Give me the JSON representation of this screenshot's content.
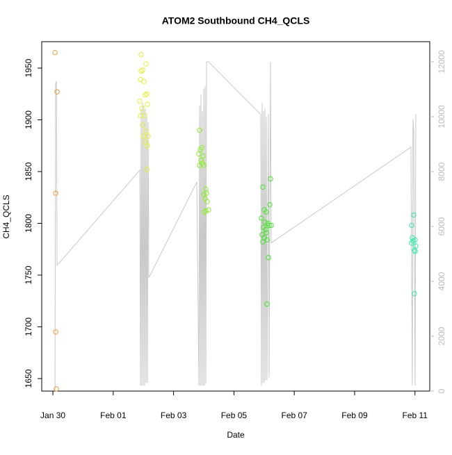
{
  "chart_data": {
    "type": "scatter",
    "title": "ATOM2 Southbound CH4_QCLS",
    "xlabel": "Date",
    "ylabel": "CH4_QCLS",
    "xlim": [
      -0.37,
      12.49
    ],
    "ylim": [
      1637.9,
      1975.5
    ],
    "y2lim": [
      0,
      12734
    ],
    "xticks": [
      {
        "value": 0,
        "label": "Jan 30"
      },
      {
        "value": 2,
        "label": "Feb 01"
      },
      {
        "value": 4,
        "label": "Feb 03"
      },
      {
        "value": 6,
        "label": "Feb 05"
      },
      {
        "value": 8,
        "label": "Feb 07"
      },
      {
        "value": 10,
        "label": "Feb 09"
      },
      {
        "value": 12,
        "label": "Feb 11"
      }
    ],
    "yticks": [
      1650,
      1700,
      1750,
      1800,
      1850,
      1900,
      1950
    ],
    "y2ticks": [
      0,
      2000,
      4000,
      6000,
      8000,
      10000,
      12000
    ],
    "series": [
      {
        "color": "#f39c3d",
        "x": [
          0.069,
          0.138,
          0.092,
          0.092,
          0.115
        ],
        "values": [
          1965,
          1927,
          1829,
          1695,
          1640
        ]
      },
      {
        "color": "#e6f02c",
        "x": [
          2.926,
          2.972,
          2.926,
          2.903,
          3.018,
          3.088,
          3.065,
          3.111,
          3.134,
          2.88,
          2.949,
          2.903,
          3.041,
          3.088,
          3.157,
          3.065,
          3.134,
          2.995,
          3.111,
          2.972
        ],
        "values": [
          1963,
          1948,
          1947,
          1939,
          1937,
          1954,
          1924,
          1925,
          1915,
          1918,
          1911,
          1904,
          1904,
          1889,
          1884,
          1878,
          1875,
          1884,
          1852,
          1895
        ]
      },
      {
        "color": "#88f020",
        "x": [
          4.862,
          4.885,
          4.931,
          4.839,
          4.977,
          4.908,
          4.862,
          5.0,
          4.954,
          5.069,
          5.092,
          5.046,
          5.115,
          5.069,
          5.161,
          5.023,
          5.0
        ],
        "values": [
          1890,
          1871,
          1873,
          1867,
          1865,
          1861,
          1856,
          1856,
          1858,
          1833,
          1829,
          1824,
          1821,
          1812,
          1813,
          1811,
          1828
        ]
      },
      {
        "color": "#44e628",
        "x": [
          6.959,
          7.212,
          7.189,
          7.005,
          7.074,
          6.912,
          7.028,
          7.12,
          6.982,
          7.166,
          7.051,
          7.235,
          6.935,
          7.005,
          7.097,
          6.959,
          7.143,
          7.097,
          7.074
        ],
        "values": [
          1835,
          1843,
          1818,
          1813,
          1811,
          1805,
          1801,
          1800,
          1796,
          1798,
          1794,
          1798,
          1789,
          1786,
          1784,
          1782,
          1767,
          1722,
          1791
        ]
      },
      {
        "color": "#28f0a8",
        "x": [
          11.889,
          11.959,
          11.912,
          11.935,
          12.005,
          11.889,
          12.028,
          11.982,
          12.005,
          11.982
        ],
        "values": [
          1798,
          1808,
          1786,
          1783,
          1784,
          1781,
          1778,
          1774,
          1773,
          1732
        ]
      },
      {
        "type": "line",
        "axis": "y2",
        "color": "#c8c8c8",
        "x": [
          0.069,
          0.092,
          0.115,
          0.138,
          2.88,
          2.903,
          2.926,
          2.949,
          2.972,
          2.995,
          3.018,
          3.041,
          3.065,
          3.088,
          3.111,
          3.134,
          3.157,
          3.18,
          4.77,
          4.839,
          4.862,
          4.885,
          4.908,
          4.931,
          4.954,
          4.977,
          5.0,
          5.023,
          5.046,
          5.069,
          5.092,
          5.115,
          5.161,
          6.889,
          6.912,
          6.935,
          6.959,
          6.982,
          7.005,
          7.028,
          7.051,
          7.074,
          7.097,
          7.143,
          7.166,
          7.212,
          7.235,
          11.866,
          11.912,
          11.935,
          11.959,
          12.005,
          12.028
        ],
        "values": [
          0,
          11200,
          11300,
          4580,
          8050,
          200,
          10300,
          200,
          10500,
          200,
          10400,
          200,
          10300,
          300,
          10100,
          300,
          9800,
          4130,
          7620,
          200,
          10400,
          200,
          10800,
          200,
          10200,
          200,
          11000,
          200,
          11100,
          300,
          12000,
          12000,
          12000,
          10080,
          200,
          10500,
          300,
          10200,
          300,
          10300,
          400,
          10000,
          400,
          10100,
          500,
          12000,
          5400,
          8890,
          200,
          9900,
          9500,
          200,
          10100
        ]
      }
    ]
  }
}
